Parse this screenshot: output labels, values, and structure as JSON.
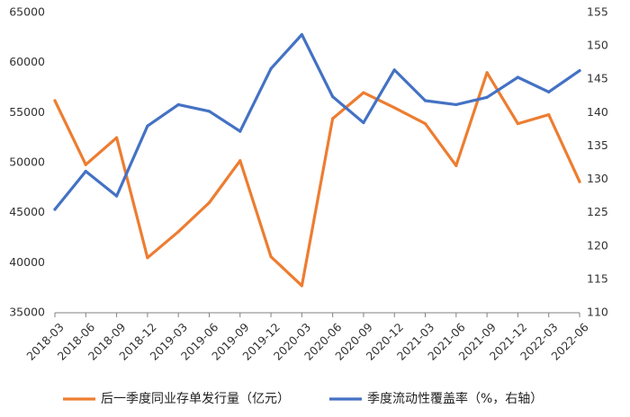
{
  "chart_data": {
    "type": "line",
    "categories": [
      "2018-03",
      "2018-06",
      "2018-09",
      "2018-12",
      "2019-03",
      "2019-06",
      "2019-09",
      "2019-12",
      "2020-03",
      "2020-06",
      "2020-09",
      "2020-12",
      "2021-03",
      "2021-06",
      "2021-09",
      "2021-12",
      "2022-03",
      "2022-06"
    ],
    "series": [
      {
        "name": "后一季度同业存单发行量（亿元）",
        "axis": "left",
        "color": "#ED7D31",
        "values": [
          56200,
          49800,
          52500,
          40500,
          43100,
          46000,
          50200,
          40600,
          37700,
          54400,
          57000,
          55500,
          53900,
          49700,
          59000,
          53900,
          54800,
          48100
        ]
      },
      {
        "name": "季度流动性覆盖率（%，右轴）",
        "axis": "right",
        "color": "#4472C4",
        "values": [
          125.5,
          131.2,
          127.5,
          138.0,
          141.2,
          140.2,
          137.2,
          146.6,
          151.7,
          142.4,
          138.5,
          146.4,
          141.8,
          141.2,
          142.3,
          145.3,
          143.1,
          146.3
        ]
      }
    ],
    "yleft": {
      "min": 35000,
      "max": 65000,
      "step": 5000
    },
    "yright": {
      "min": 110,
      "max": 155,
      "step": 5
    },
    "grid": false,
    "legend": "bottom"
  }
}
